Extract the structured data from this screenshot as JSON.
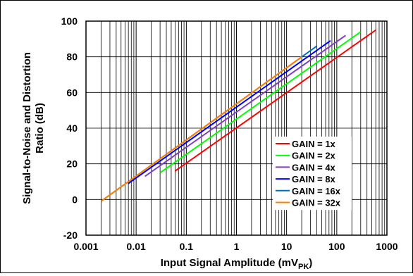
{
  "chart_data": {
    "type": "line",
    "title": "",
    "xlabel": "Input Signal Amplitude (mV",
    "xlabel_sub": "PK",
    "xlabel_close": ")",
    "ylabel_line1": "Signal-to-Noise and Distortion",
    "ylabel_line2": "Ratio (dB)",
    "x_scale": "log",
    "xlim": [
      0.001,
      1000
    ],
    "ylim": [
      -20,
      100
    ],
    "x_ticks": [
      "0.001",
      "0.01",
      "0.1",
      "1",
      "10",
      "100",
      "1000"
    ],
    "x_tick_values": [
      0.001,
      0.01,
      0.1,
      1,
      10,
      100,
      1000
    ],
    "y_ticks": [
      "-20",
      "0",
      "20",
      "40",
      "60",
      "80",
      "100"
    ],
    "y_tick_values": [
      -20,
      0,
      20,
      40,
      60,
      80,
      100
    ],
    "grid": true,
    "legend_position": "bottom-right",
    "series": [
      {
        "name": "GAIN = 1x",
        "color": "#ff0000",
        "x": [
          0.06,
          600
        ],
        "y": [
          16,
          95
        ]
      },
      {
        "name": "GAIN = 2x",
        "color": "#00ff00",
        "x": [
          0.03,
          300
        ],
        "y": [
          15,
          94
        ]
      },
      {
        "name": "GAIN = 4x",
        "color": "#7f3fbf",
        "x": [
          0.015,
          150
        ],
        "y": [
          13,
          92
        ]
      },
      {
        "name": "GAIN = 8x",
        "color": "#0000ff",
        "x": [
          0.007,
          75
        ],
        "y": [
          9,
          89
        ]
      },
      {
        "name": "GAIN = 16x",
        "color": "#0070c0",
        "x": [
          0.002,
          40
        ],
        "y": [
          -1,
          86
        ]
      },
      {
        "name": "GAIN = 32x",
        "color": "#ff8000",
        "x": [
          0.002,
          20
        ],
        "y": [
          -1,
          80
        ]
      }
    ]
  }
}
